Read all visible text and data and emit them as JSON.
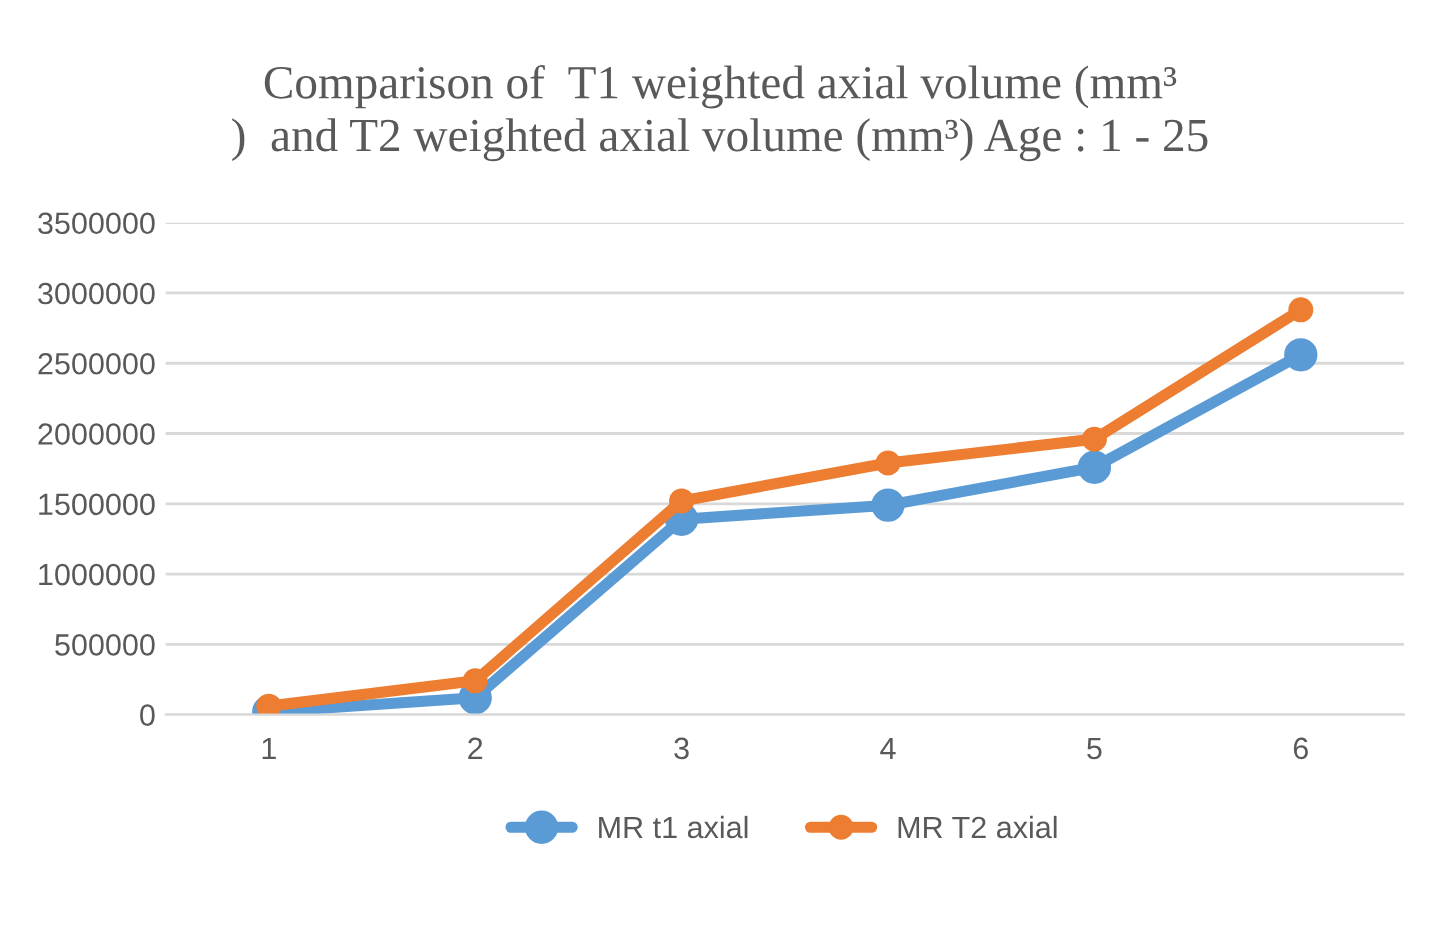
{
  "chart_data": {
    "type": "line",
    "title": "Comparison of  T1 weighted axial volume (mm³\n)  and T2 weighted axial volume (mm³) Age : 1 - 25",
    "categories": [
      "1",
      "2",
      "3",
      "4",
      "5",
      "6"
    ],
    "series": [
      {
        "name": "MR t1 axial",
        "color": "#5b9bd5",
        "values": [
          20000,
          120000,
          1390000,
          1490000,
          1760000,
          2560000
        ]
      },
      {
        "name": "MR T2 axial",
        "color": "#ed7d31",
        "values": [
          60000,
          240000,
          1520000,
          1790000,
          1960000,
          2880000
        ]
      }
    ],
    "ylim": [
      0,
      3500000
    ],
    "yticks": [
      0,
      500000,
      1000000,
      1500000,
      2000000,
      2500000,
      3000000,
      3500000
    ],
    "grid": "y",
    "legend": "bottom",
    "marker": "circle",
    "line_style": "solid"
  }
}
